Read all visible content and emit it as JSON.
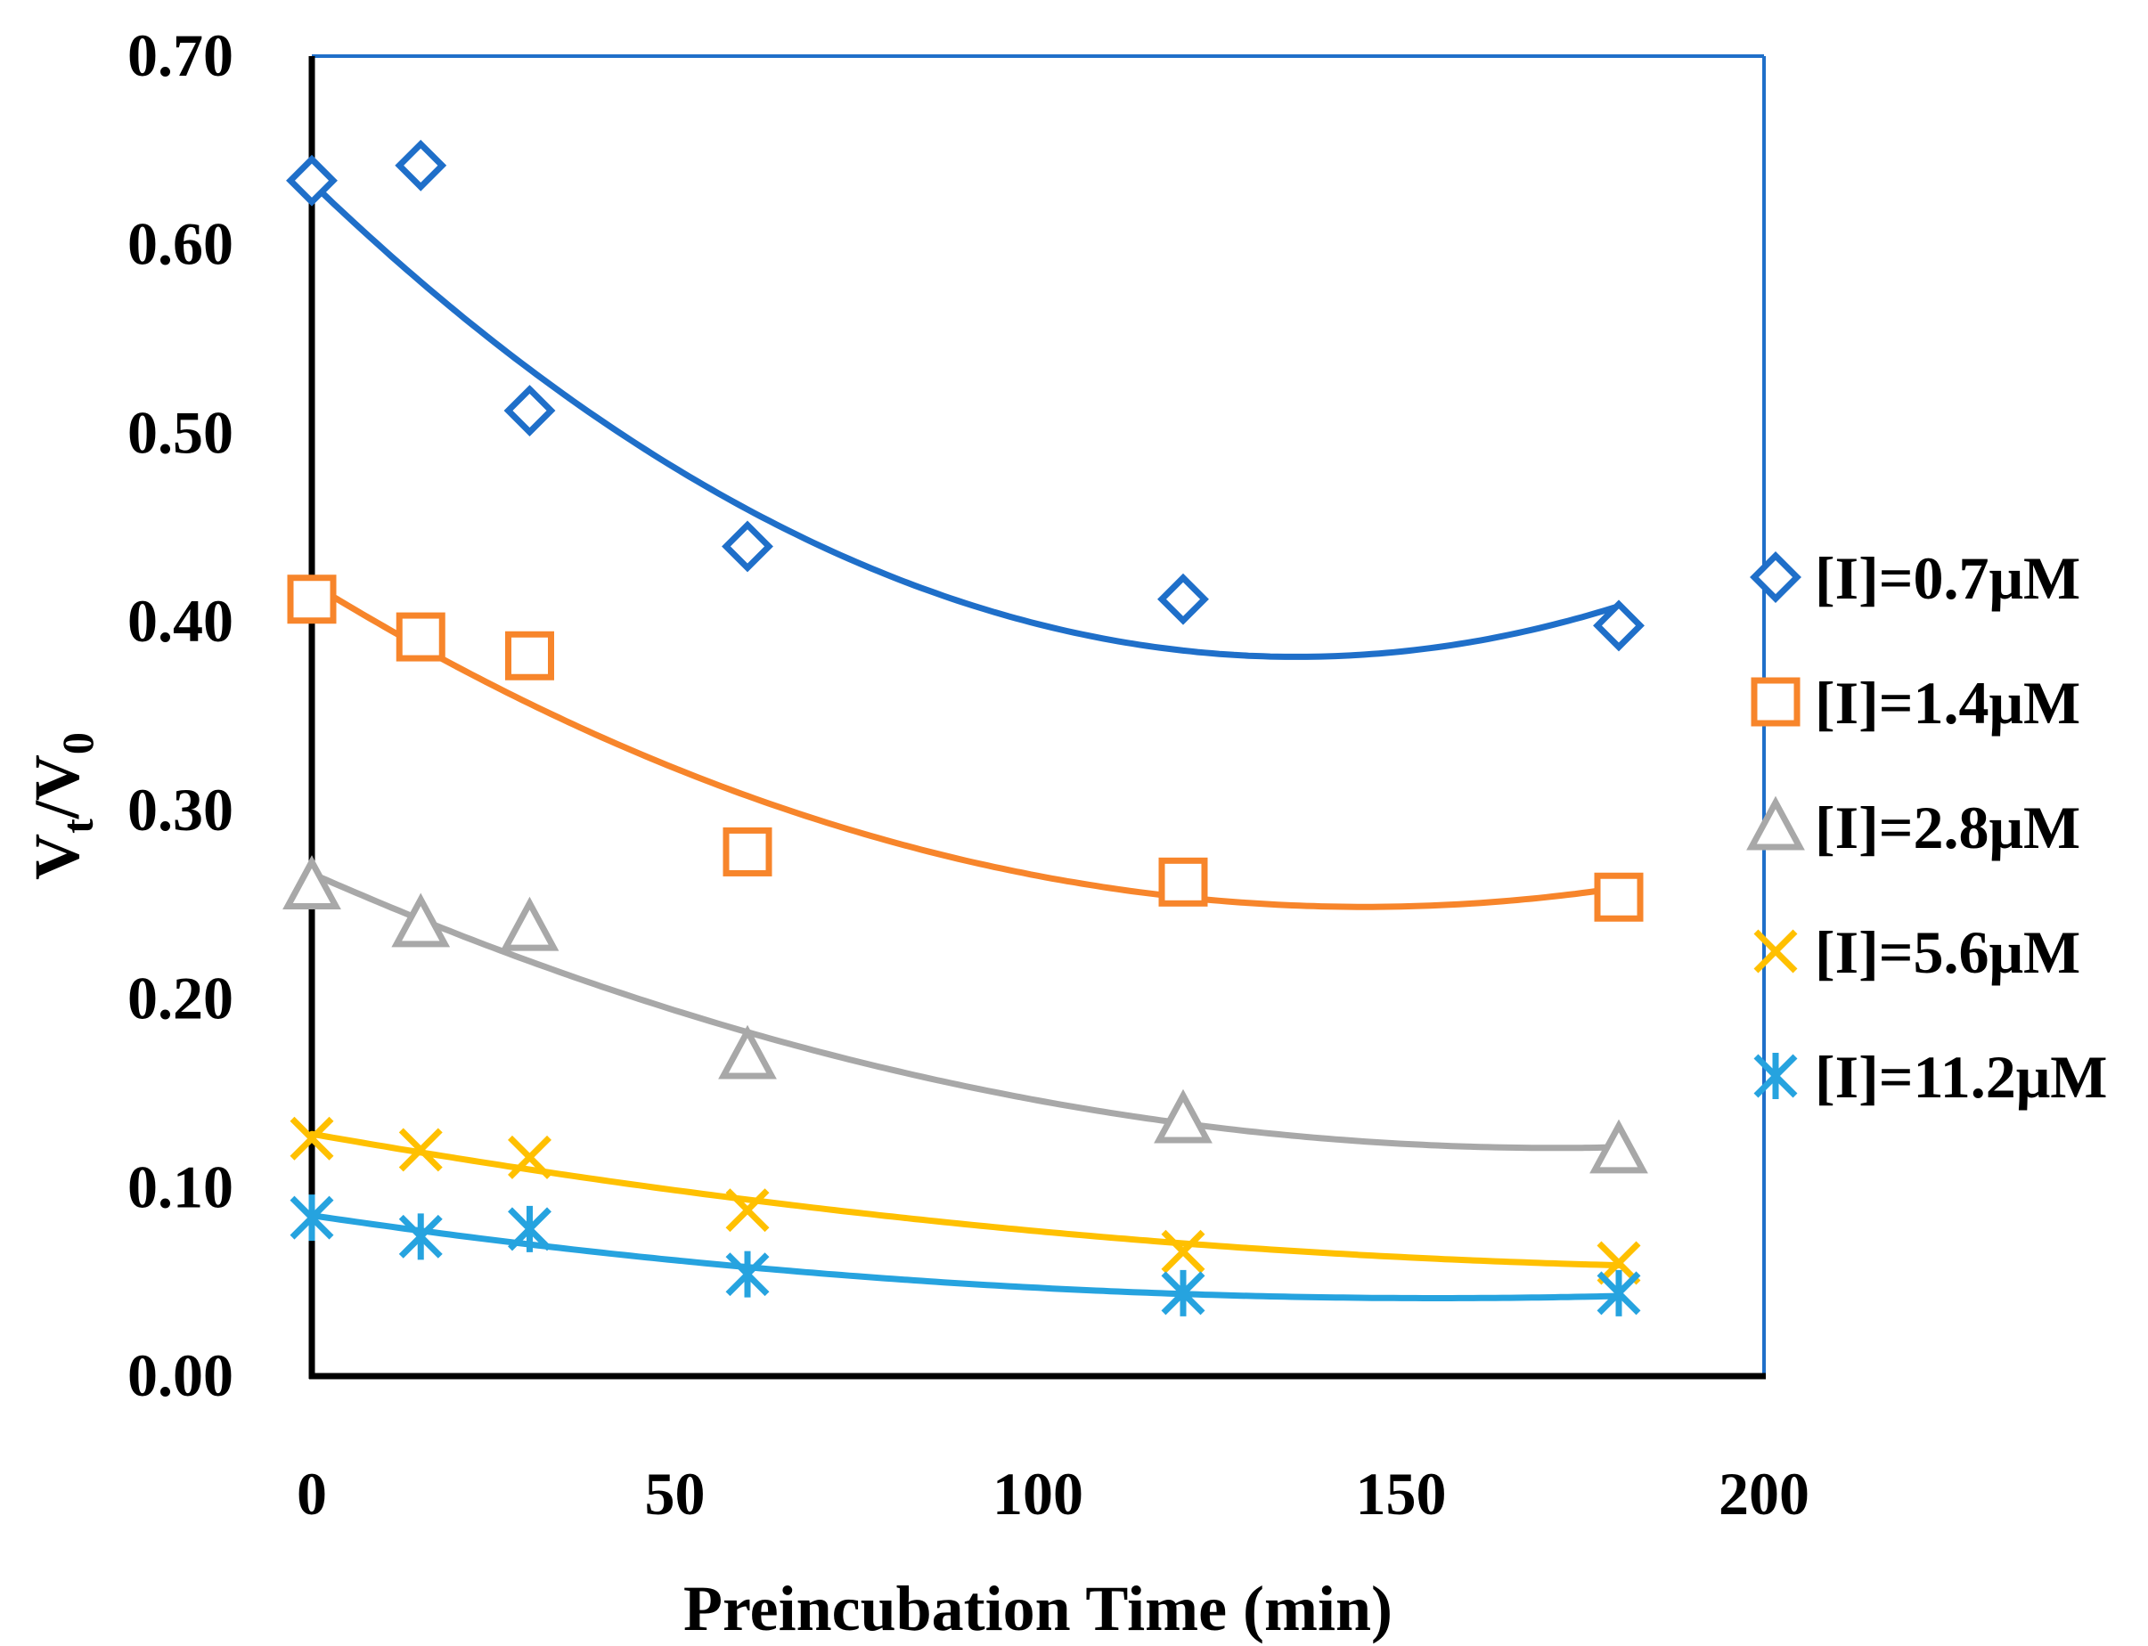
{
  "chart_data": {
    "type": "scatter",
    "title": "",
    "xlabel": "Preincubation Time (min)",
    "ylabel_main": "V",
    "ylabel_sub1": "t",
    "ylabel_sep": "/V",
    "ylabel_sub2": "0",
    "xlim": [
      0,
      200
    ],
    "ylim": [
      0,
      0.7
    ],
    "xticks": [
      0,
      50,
      100,
      150,
      200
    ],
    "xtick_labels": [
      "0",
      "50",
      "100",
      "150",
      "200"
    ],
    "yticks": [
      0,
      0.1,
      0.2,
      0.3,
      0.4,
      0.5,
      0.6,
      0.7
    ],
    "ytick_labels": [
      "0.00",
      "0.10",
      "0.20",
      "0.30",
      "0.40",
      "0.50",
      "0.60",
      "0.70"
    ],
    "legend_position": "right",
    "trendline": "polynomial (order 2)",
    "x": [
      0,
      15,
      30,
      60,
      120,
      180
    ],
    "series": [
      {
        "name": "[I]=0.7μM",
        "marker": "diamond",
        "color": "#1F6FC9",
        "values": [
          0.634,
          0.642,
          0.512,
          0.44,
          0.412,
          0.398
        ],
        "fit": [
          0.6328,
          -0.003706,
          1.366e-05
        ]
      },
      {
        "name": "[I]=1.4μM",
        "marker": "square",
        "color": "#F7852B",
        "values": [
          0.412,
          0.392,
          0.382,
          0.278,
          0.262,
          0.254
        ],
        "fit": [
          0.4202,
          -0.002365,
          8.16e-06
        ]
      },
      {
        "name": "[I]=2.8μM",
        "marker": "triangle",
        "color": "#A8A8A8",
        "values": [
          0.26,
          0.24,
          0.238,
          0.17,
          0.136,
          0.12
        ],
        "fit": [
          0.2665,
          -0.001699,
          4.96e-06
        ]
      },
      {
        "name": "[I]=5.6μM",
        "marker": "x",
        "color": "#FFC000",
        "values": [
          0.126,
          0.12,
          0.116,
          0.088,
          0.066,
          0.06
        ],
        "fit": [
          0.1284,
          -0.0006766,
          1.61e-06
        ]
      },
      {
        "name": "[I]=11.2μM",
        "marker": "star",
        "color": "#26A3DF",
        "values": [
          0.084,
          0.074,
          0.078,
          0.054,
          0.044,
          0.044
        ],
        "fit": [
          0.0852,
          -0.0005666,
          1.83e-06
        ]
      }
    ]
  }
}
